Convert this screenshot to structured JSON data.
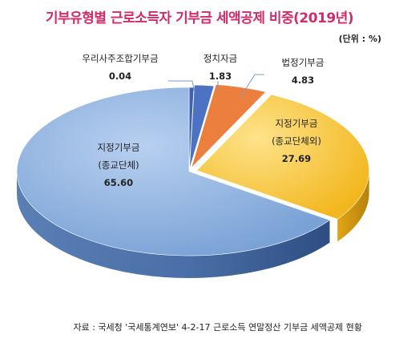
{
  "title": "기부유형별 근로소득자 기부금 세액공제 비중(2019년)",
  "unit": "(단위 : %)",
  "source": "자료 : 국세청 '국세통계연보' 4-2-17 근로소득 연말정산 기부금 세액공제 현황",
  "colors": {
    "title": "#d22a6b",
    "slice_large": "#8fb3e2",
    "slice_yellow": "#f9c224",
    "slice_orange": "#ec7f3d",
    "slice_small": "#4d72c4",
    "leader": "#7a9bc7"
  },
  "chart_data": {
    "type": "pie",
    "style": "3d",
    "title": "기부유형별 근로소득자 기부금 세액공제 비중(2019년)",
    "unit": "(단위 : %)",
    "slices": [
      {
        "label_lines": [
          "지정기부금",
          "(종교단체)"
        ],
        "value": 65.6,
        "value_text": "65.60",
        "color": "#8fb3e2"
      },
      {
        "label_lines": [
          "우리사주조합기부금"
        ],
        "value": 0.04,
        "value_text": "0.04",
        "color": "#3d62b0"
      },
      {
        "label_lines": [
          "정치자금"
        ],
        "value": 1.83,
        "value_text": "1.83",
        "color": "#4d72c4"
      },
      {
        "label_lines": [
          "법정기부금"
        ],
        "value": 4.83,
        "value_text": "4.83",
        "color": "#ec7f3d"
      },
      {
        "label_lines": [
          "지정기부금",
          "(종교단체외)"
        ],
        "value": 27.69,
        "value_text": "27.69",
        "color": "#f9c224"
      }
    ]
  }
}
